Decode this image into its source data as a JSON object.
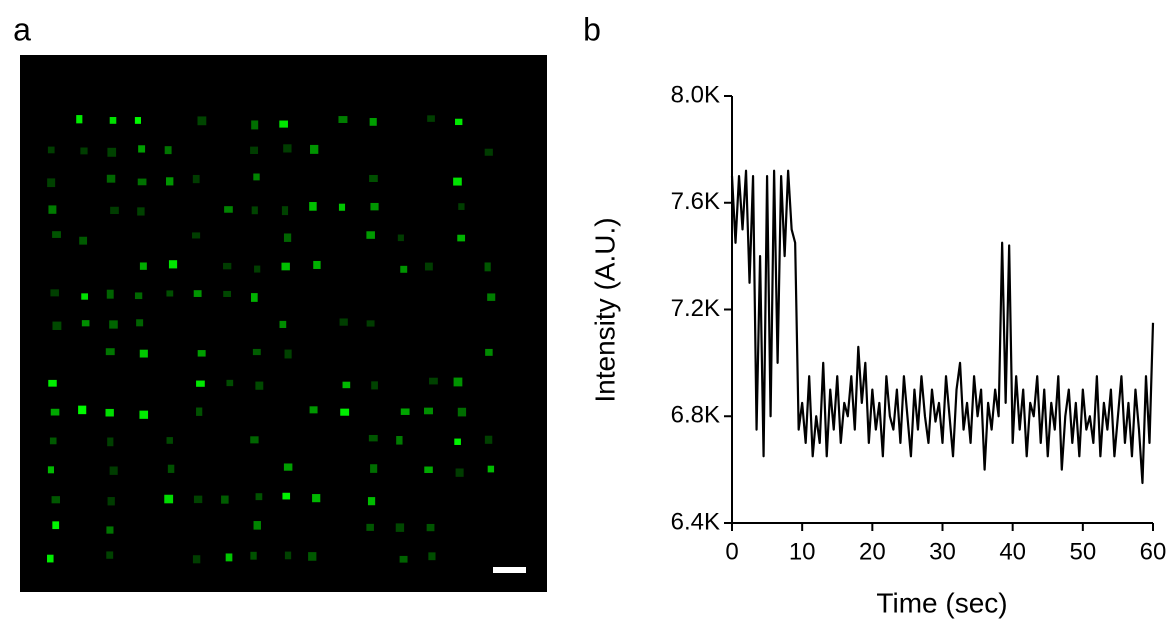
{
  "panel_labels": [
    "a",
    "b"
  ],
  "chart_data": {
    "type": "line",
    "xlabel": "Time (sec)",
    "ylabel": "Intensity (A.U.)",
    "xlim": [
      0,
      60
    ],
    "xticks": [
      0,
      10,
      20,
      30,
      40,
      50,
      60
    ],
    "ylim": [
      6400,
      8000
    ],
    "yticks": [
      {
        "value": 6400,
        "label": "6.4K"
      },
      {
        "value": 6800,
        "label": "6.8K"
      },
      {
        "value": 7200,
        "label": "7.2K"
      },
      {
        "value": 7600,
        "label": "7.6K"
      },
      {
        "value": 8000,
        "label": "8.0K"
      }
    ],
    "grid": false,
    "x": [
      0,
      0.5,
      1,
      1.5,
      2,
      2.5,
      3,
      3.5,
      4,
      4.5,
      5,
      5.5,
      6,
      6.5,
      7,
      7.5,
      8,
      8.5,
      9,
      9.5,
      10,
      10.5,
      11,
      11.5,
      12,
      12.5,
      13,
      13.5,
      14,
      14.5,
      15,
      15.5,
      16,
      16.5,
      17,
      17.5,
      18,
      18.5,
      19,
      19.5,
      20,
      20.5,
      21,
      21.5,
      22,
      22.5,
      23,
      23.5,
      24,
      24.5,
      25,
      25.5,
      26,
      26.5,
      27,
      27.5,
      28,
      28.5,
      29,
      29.5,
      30,
      30.5,
      31,
      31.5,
      32,
      32.5,
      33,
      33.5,
      34,
      34.5,
      35,
      35.5,
      36,
      36.5,
      37,
      37.5,
      38,
      38.5,
      39,
      39.5,
      40,
      40.5,
      41,
      41.5,
      42,
      42.5,
      43,
      43.5,
      44,
      44.5,
      45,
      45.5,
      46,
      46.5,
      47,
      47.5,
      48,
      48.5,
      49,
      49.5,
      50,
      50.5,
      51,
      51.5,
      52,
      52.5,
      53,
      53.5,
      54,
      54.5,
      55,
      55.5,
      56,
      56.5,
      57,
      57.5,
      58,
      58.5,
      59,
      59.5,
      60
    ],
    "series": [
      {
        "color": "#000000",
        "values": [
          7700,
          7450,
          7700,
          7500,
          7720,
          7300,
          7700,
          6750,
          7400,
          6650,
          7700,
          6800,
          7720,
          7000,
          7700,
          7400,
          7720,
          7500,
          7450,
          6750,
          6850,
          6700,
          6950,
          6650,
          6800,
          6700,
          7000,
          6650,
          6900,
          6750,
          6950,
          6700,
          6850,
          6800,
          6950,
          6750,
          7060,
          6850,
          7000,
          6700,
          6900,
          6750,
          6850,
          6650,
          6950,
          6800,
          6750,
          6900,
          6700,
          6950,
          6800,
          6650,
          6900,
          6750,
          6950,
          6800,
          6700,
          6900,
          6780,
          6850,
          6700,
          6950,
          6800,
          6650,
          6900,
          7000,
          6750,
          6850,
          6700,
          6950,
          6800,
          6900,
          6600,
          6850,
          6750,
          6900,
          6800,
          7450,
          6850,
          7440,
          6700,
          6950,
          6750,
          6900,
          6650,
          6850,
          6800,
          6950,
          6700,
          6900,
          6650,
          6850,
          6750,
          6950,
          6600,
          6800,
          6900,
          6700,
          6850,
          6650,
          6900,
          6750,
          6800,
          6700,
          6950,
          6650,
          6850,
          6750,
          6900,
          6650,
          6800,
          6950,
          6700,
          6850,
          6650,
          6900,
          6750,
          6550,
          6950,
          6700,
          7150
        ]
      }
    ]
  }
}
